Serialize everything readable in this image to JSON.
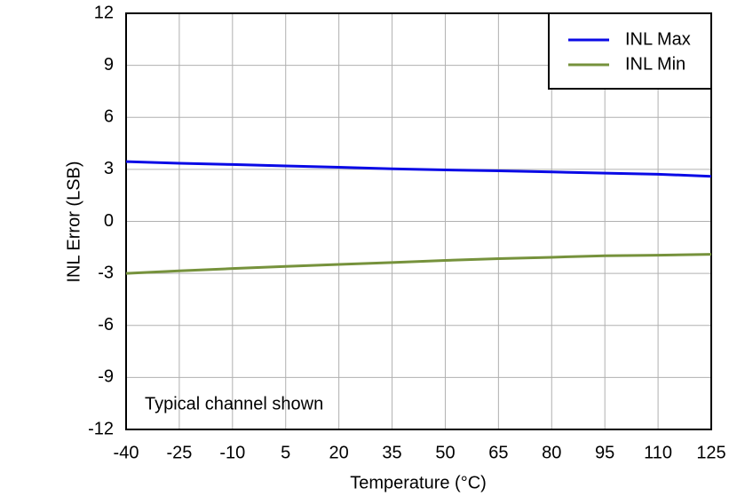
{
  "chart_data": {
    "type": "line",
    "x_label": "Temperature (°C)",
    "y_label": "INL Error (LSB)",
    "annotation": "Typical channel shown",
    "x": [
      -40,
      -25,
      -10,
      5,
      20,
      35,
      50,
      65,
      80,
      95,
      110,
      125
    ],
    "series": [
      {
        "name": "INL Max",
        "color": "#0a0ae6",
        "values": [
          3.45,
          3.35,
          3.28,
          3.2,
          3.12,
          3.03,
          2.97,
          2.92,
          2.85,
          2.78,
          2.72,
          2.6
        ]
      },
      {
        "name": "INL Min",
        "color": "#76923c",
        "values": [
          -3.0,
          -2.85,
          -2.72,
          -2.6,
          -2.48,
          -2.37,
          -2.25,
          -2.15,
          -2.07,
          -1.98,
          -1.95,
          -1.9
        ]
      }
    ],
    "xlim": [
      -40,
      125
    ],
    "xticks": [
      -40,
      -25,
      -10,
      5,
      20,
      35,
      50,
      65,
      80,
      95,
      110,
      125
    ],
    "ylim": [
      -12,
      12
    ],
    "yticks": [
      -12,
      -9,
      -6,
      -3,
      0,
      3,
      6,
      9,
      12
    ],
    "grid": true,
    "legend": "upper-right"
  }
}
